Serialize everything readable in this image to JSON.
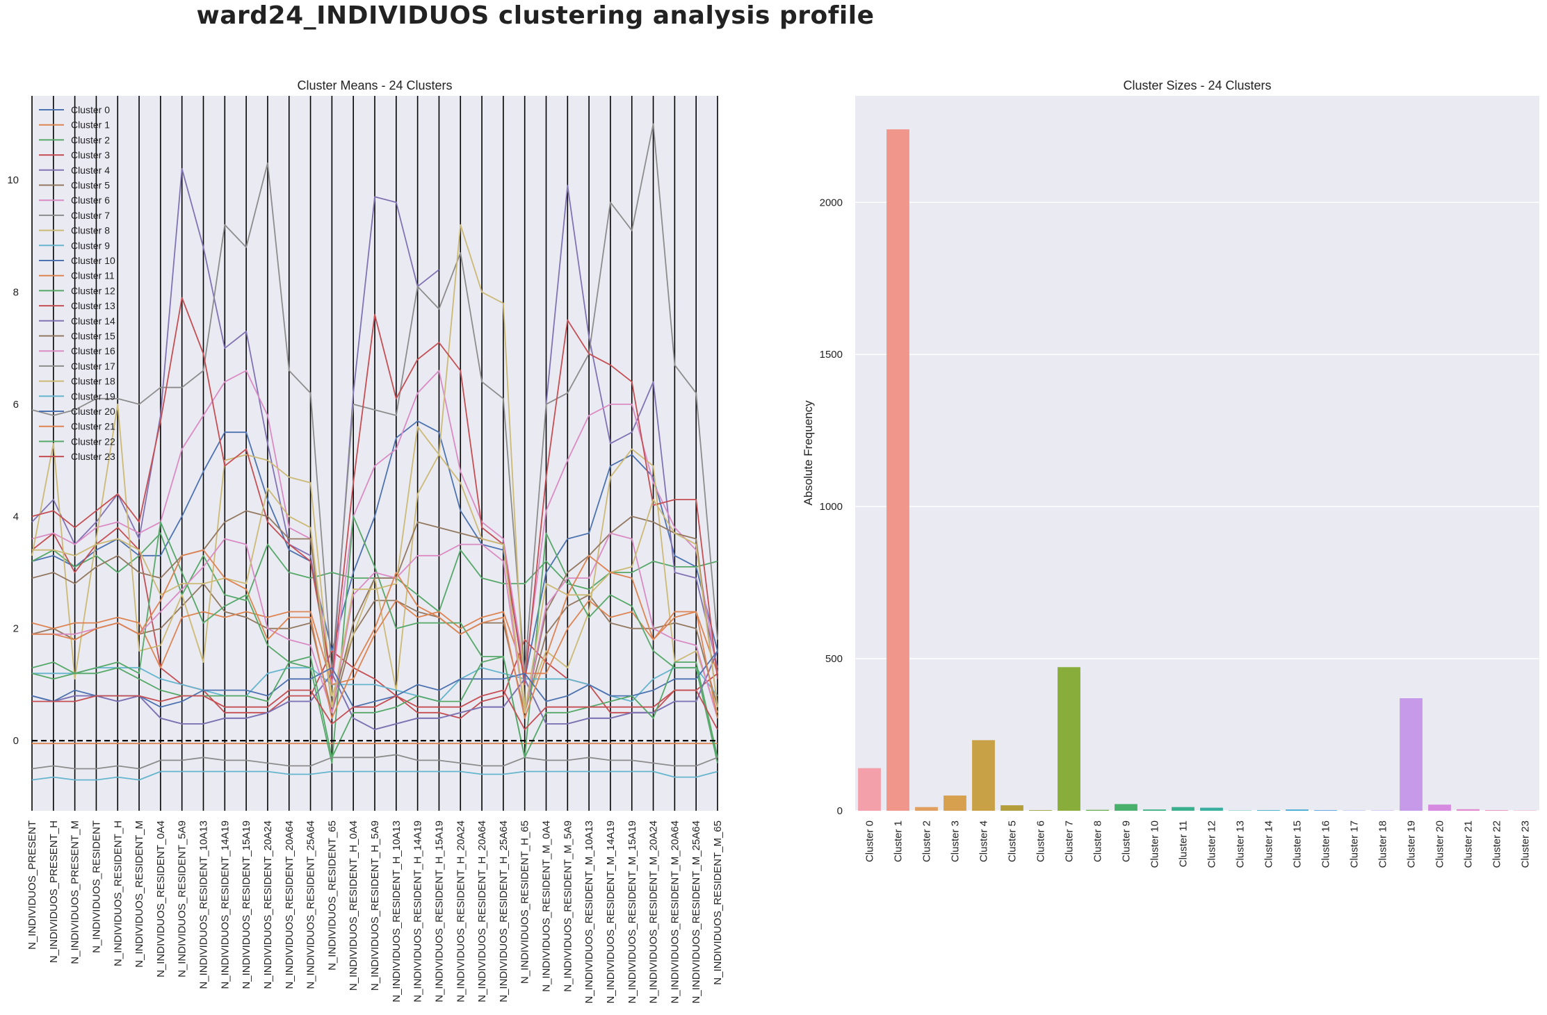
{
  "title": "ward24_INDIVIDUOS clustering analysis profile",
  "chart_data": [
    {
      "type": "line",
      "title": "Cluster Means - 24 Clusters",
      "ylim": [
        -1.25,
        11.5
      ],
      "yticks": [
        0,
        2,
        4,
        6,
        8,
        10
      ],
      "grid": false,
      "legend": "top-left",
      "reference_line": 0,
      "categories": [
        "N_INDIVIDUOS_PRESENT",
        "N_INDIVIDUOS_PRESENT_H",
        "N_INDIVIDUOS_PRESENT_M",
        "N_INDIVIDUOS_RESIDENT",
        "N_INDIVIDUOS_RESIDENT_H",
        "N_INDIVIDUOS_RESIDENT_M",
        "N_INDIVIDUOS_RESIDENT_0A4",
        "N_INDIVIDUOS_RESIDENT_5A9",
        "N_INDIVIDUOS_RESIDENT_10A13",
        "N_INDIVIDUOS_RESIDENT_14A19",
        "N_INDIVIDUOS_RESIDENT_15A19",
        "N_INDIVIDUOS_RESIDENT_20A24",
        "N_INDIVIDUOS_RESIDENT_20A64",
        "N_INDIVIDUOS_RESIDENT_25A64",
        "N_INDIVIDUOS_RESIDENT_65",
        "N_INDIVIDUOS_RESIDENT_H_0A4",
        "N_INDIVIDUOS_RESIDENT_H_5A9",
        "N_INDIVIDUOS_RESIDENT_H_10A13",
        "N_INDIVIDUOS_RESIDENT_H_14A19",
        "N_INDIVIDUOS_RESIDENT_H_15A19",
        "N_INDIVIDUOS_RESIDENT_H_20A24",
        "N_INDIVIDUOS_RESIDENT_H_20A64",
        "N_INDIVIDUOS_RESIDENT_H_25A64",
        "N_INDIVIDUOS_RESIDENT_H_65",
        "N_INDIVIDUOS_RESIDENT_M_0A4",
        "N_INDIVIDUOS_RESIDENT_M_5A9",
        "N_INDIVIDUOS_RESIDENT_M_10A13",
        "N_INDIVIDUOS_RESIDENT_M_14A19",
        "N_INDIVIDUOS_RESIDENT_M_15A19",
        "N_INDIVIDUOS_RESIDENT_M_20A24",
        "N_INDIVIDUOS_RESIDENT_M_20A64",
        "N_INDIVIDUOS_RESIDENT_M_25A64",
        "N_INDIVIDUOS_RESIDENT_M_65"
      ],
      "series": [
        {
          "name": "Cluster 0",
          "color": "#4c72b0",
          "values": [
            3.2,
            3.3,
            3.1,
            3.4,
            3.6,
            3.3,
            3.3,
            4.0,
            4.8,
            5.5,
            5.5,
            4.3,
            3.4,
            3.2,
            1.6,
            3.0,
            4.0,
            5.4,
            5.7,
            5.5,
            4.1,
            3.5,
            3.4,
            1.1,
            3.0,
            3.6,
            3.7,
            4.9,
            5.1,
            4.7,
            3.3,
            3.1,
            1.6
          ]
        },
        {
          "name": "Cluster 1",
          "color": "#dd8452",
          "values": [
            -0.05,
            -0.05,
            -0.05,
            -0.05,
            -0.05,
            -0.05,
            -0.05,
            -0.05,
            -0.05,
            -0.05,
            -0.05,
            -0.05,
            -0.05,
            -0.05,
            -0.05,
            -0.05,
            -0.05,
            -0.05,
            -0.05,
            -0.05,
            -0.05,
            -0.05,
            -0.05,
            -0.05,
            -0.05,
            -0.05,
            -0.05,
            -0.05,
            -0.05,
            -0.05,
            -0.05,
            -0.05,
            -0.05
          ]
        },
        {
          "name": "Cluster 2",
          "color": "#55a868",
          "values": [
            3.2,
            3.4,
            3.1,
            3.3,
            3.0,
            3.3,
            3.7,
            2.6,
            3.3,
            2.6,
            2.5,
            3.5,
            3.0,
            2.9,
            3.0,
            2.9,
            2.9,
            2.9,
            2.6,
            2.3,
            3.4,
            2.9,
            2.8,
            2.8,
            3.2,
            2.8,
            2.7,
            3.0,
            3.0,
            3.2,
            3.1,
            3.1,
            3.2
          ]
        },
        {
          "name": "Cluster 3",
          "color": "#c44e52",
          "values": [
            3.4,
            3.7,
            3.0,
            3.5,
            3.8,
            3.4,
            1.3,
            1.0,
            0.9,
            0.5,
            0.5,
            0.5,
            0.8,
            0.8,
            1.6,
            1.3,
            1.1,
            0.8,
            0.5,
            0.5,
            0.4,
            0.7,
            0.8,
            1.8,
            1.4,
            1.1,
            1.0,
            0.5,
            0.5,
            0.5,
            0.9,
            0.9,
            1.2
          ]
        },
        {
          "name": "Cluster 4",
          "color": "#8172b3",
          "values": [
            3.9,
            4.3,
            3.5,
            3.9,
            4.4,
            3.6,
            5.8,
            10.2,
            8.8,
            7.0,
            7.3,
            5.3,
            3.5,
            3.3,
            1.0,
            6.2,
            9.7,
            9.6,
            8.1,
            8.4,
            null,
            null,
            null,
            null,
            6.0,
            9.9,
            7.2,
            5.3,
            5.5,
            6.4,
            3.0,
            2.9,
            1.3
          ]
        },
        {
          "name": "Cluster 5",
          "color": "#937860",
          "values": [
            1.9,
            2.0,
            1.8,
            2.0,
            2.1,
            1.9,
            2.0,
            2.4,
            2.8,
            2.3,
            2.2,
            2.0,
            2.0,
            2.1,
            0.5,
            1.9,
            2.5,
            2.5,
            2.3,
            2.2,
            1.9,
            2.1,
            2.1,
            0.5,
            1.9,
            2.4,
            2.6,
            2.1,
            2.0,
            2.0,
            2.1,
            2.0,
            0.6
          ]
        },
        {
          "name": "Cluster 6",
          "color": "#da8bc3",
          "values": [
            3.6,
            3.7,
            3.5,
            3.8,
            3.9,
            3.7,
            3.9,
            5.2,
            5.8,
            6.4,
            6.6,
            5.8,
            3.8,
            3.6,
            1.0,
            4.0,
            4.9,
            5.2,
            6.2,
            6.6,
            4.8,
            3.9,
            3.6,
            1.2,
            4.1,
            5.0,
            5.8,
            6.0,
            6.0,
            4.6,
            3.8,
            3.4,
            1.2
          ]
        },
        {
          "name": "Cluster 7",
          "color": "#8c8c8c",
          "values": [
            5.9,
            5.8,
            5.9,
            6.1,
            6.1,
            6.0,
            6.3,
            6.3,
            6.6,
            9.2,
            8.8,
            10.3,
            6.6,
            6.2,
            1.2,
            6.0,
            5.9,
            5.8,
            8.1,
            7.7,
            8.7,
            6.4,
            6.1,
            1.2,
            6.0,
            6.2,
            6.9,
            9.6,
            9.1,
            11.0,
            6.7,
            6.2,
            1.8
          ]
        },
        {
          "name": "Cluster 8",
          "color": "#ccb974",
          "values": [
            3.3,
            5.3,
            1.1,
            3.6,
            6.0,
            1.6,
            1.7,
            2.6,
            1.4,
            5.0,
            5.1,
            5.0,
            4.7,
            4.6,
            0.8,
            1.9,
            2.9,
            0.9,
            4.4,
            5.1,
            9.2,
            8.0,
            7.8,
            0.6,
            1.6,
            1.3,
            2.3,
            4.7,
            5.2,
            4.9,
            1.4,
            1.6,
            0.5
          ]
        },
        {
          "name": "Cluster 9",
          "color": "#64b5cd",
          "values": [
            1.2,
            1.2,
            1.2,
            1.3,
            1.3,
            1.3,
            1.1,
            1.0,
            0.9,
            0.8,
            0.8,
            1.2,
            1.3,
            1.3,
            1.0,
            1.0,
            1.0,
            0.9,
            0.8,
            0.7,
            1.1,
            1.3,
            1.2,
            1.1,
            1.1,
            1.1,
            1.0,
            0.8,
            0.7,
            1.1,
            1.3,
            1.3,
            0.8
          ]
        },
        {
          "name": "Cluster 10",
          "color": "#4c72b0",
          "values": [
            0.8,
            0.7,
            0.8,
            0.8,
            0.7,
            0.8,
            0.4,
            0.3,
            0.3,
            0.4,
            0.4,
            0.5,
            0.7,
            0.7,
            1.2,
            0.4,
            0.2,
            0.3,
            0.4,
            0.4,
            0.5,
            0.6,
            0.6,
            1.1,
            0.3,
            0.3,
            0.4,
            0.4,
            0.5,
            0.5,
            0.7,
            0.7,
            1.6
          ]
        },
        {
          "name": "Cluster 11",
          "color": "#dd8452",
          "values": [
            2.1,
            2.0,
            2.1,
            2.1,
            2.2,
            2.1,
            1.3,
            2.2,
            2.3,
            2.2,
            2.3,
            2.2,
            2.3,
            2.3,
            1.0,
            1.1,
            1.9,
            2.5,
            2.2,
            2.3,
            2.0,
            2.2,
            2.3,
            1.2,
            1.2,
            2.0,
            2.5,
            2.2,
            2.3,
            1.8,
            2.2,
            2.3,
            1.2
          ]
        },
        {
          "name": "Cluster 12",
          "color": "#55a868",
          "values": [
            1.3,
            1.4,
            1.2,
            1.3,
            1.4,
            1.2,
            3.9,
            3.0,
            2.1,
            2.4,
            2.6,
            1.7,
            1.4,
            1.3,
            -0.4,
            4.0,
            3.1,
            2.0,
            2.1,
            2.1,
            2.1,
            1.5,
            1.5,
            -0.3,
            3.7,
            2.9,
            2.2,
            2.6,
            2.4,
            1.6,
            1.3,
            1.3,
            -0.4
          ]
        },
        {
          "name": "Cluster 13",
          "color": "#c44e52",
          "values": [
            4.0,
            4.1,
            3.8,
            4.1,
            4.4,
            3.9,
            5.7,
            7.9,
            6.9,
            4.9,
            5.2,
            3.9,
            3.5,
            3.2,
            1.1,
            4.6,
            7.6,
            6.1,
            6.8,
            7.1,
            6.6,
            3.8,
            3.5,
            1.0,
            4.7,
            7.5,
            6.9,
            6.7,
            6.4,
            4.2,
            4.3,
            4.3,
            1.1
          ]
        },
        {
          "name": "Cluster 14",
          "color": "#8172b3",
          "values": [
            0.8,
            0.7,
            0.8,
            0.8,
            0.7,
            0.8,
            0.4,
            0.3,
            0.3,
            0.4,
            0.4,
            0.5,
            0.7,
            0.7,
            1.2,
            0.4,
            0.2,
            0.3,
            0.4,
            0.4,
            0.5,
            0.6,
            0.6,
            1.1,
            0.3,
            0.3,
            0.4,
            0.4,
            0.5,
            0.5,
            0.7,
            0.7,
            1.6
          ]
        },
        {
          "name": "Cluster 15",
          "color": "#937860",
          "values": [
            2.9,
            3.0,
            2.8,
            3.1,
            3.3,
            3.0,
            2.9,
            3.3,
            3.4,
            3.9,
            4.1,
            4.0,
            3.6,
            3.6,
            0.6,
            2.1,
            2.9,
            2.9,
            3.9,
            3.8,
            3.7,
            3.6,
            3.5,
            0.5,
            2.3,
            3.0,
            3.3,
            3.7,
            4.0,
            3.9,
            3.7,
            3.6,
            0.6
          ]
        },
        {
          "name": "Cluster 16",
          "color": "#da8bc3",
          "values": [
            1.9,
            1.9,
            1.9,
            2.0,
            2.1,
            1.9,
            2.3,
            2.7,
            3.1,
            3.6,
            3.5,
            2.0,
            1.8,
            1.7,
            0.5,
            2.6,
            3.0,
            2.9,
            3.3,
            3.3,
            3.5,
            3.5,
            3.2,
            0.5,
            2.4,
            2.9,
            2.9,
            3.7,
            3.6,
            2.0,
            1.8,
            1.7,
            0.4
          ]
        },
        {
          "name": "Cluster 17",
          "color": "#8c8c8c",
          "values": [
            -0.5,
            -0.45,
            -0.5,
            -0.5,
            -0.45,
            -0.5,
            -0.35,
            -0.35,
            -0.3,
            -0.35,
            -0.35,
            -0.4,
            -0.45,
            -0.45,
            -0.3,
            -0.3,
            -0.3,
            -0.25,
            -0.35,
            -0.35,
            -0.4,
            -0.45,
            -0.45,
            -0.3,
            -0.35,
            -0.35,
            -0.3,
            -0.35,
            -0.35,
            -0.4,
            -0.45,
            -0.45,
            -0.3
          ]
        },
        {
          "name": "Cluster 18",
          "color": "#ccb974",
          "values": [
            3.4,
            3.4,
            3.3,
            3.5,
            3.6,
            3.4,
            2.6,
            2.8,
            2.8,
            2.9,
            2.8,
            4.5,
            4.0,
            3.8,
            0.6,
            2.7,
            2.7,
            2.8,
            5.6,
            5.1,
            4.6,
            3.6,
            3.5,
            0.5,
            2.8,
            2.6,
            2.6,
            3.0,
            3.1,
            4.3,
            3.7,
            3.5,
            0.6
          ]
        },
        {
          "name": "Cluster 19",
          "color": "#64b5cd",
          "values": [
            -0.7,
            -0.65,
            -0.7,
            -0.7,
            -0.65,
            -0.7,
            -0.55,
            -0.55,
            -0.55,
            -0.55,
            -0.55,
            -0.55,
            -0.6,
            -0.6,
            -0.55,
            -0.55,
            -0.55,
            -0.55,
            -0.55,
            -0.55,
            -0.55,
            -0.6,
            -0.6,
            -0.55,
            -0.55,
            -0.55,
            -0.55,
            -0.55,
            -0.55,
            -0.55,
            -0.65,
            -0.65,
            -0.55
          ]
        },
        {
          "name": "Cluster 20",
          "color": "#4c72b0",
          "values": [
            0.8,
            0.7,
            0.9,
            0.8,
            0.8,
            0.8,
            0.6,
            0.7,
            0.9,
            0.9,
            0.9,
            0.8,
            1.1,
            1.1,
            1.3,
            0.6,
            0.7,
            0.8,
            1.0,
            0.9,
            1.1,
            1.1,
            1.1,
            1.2,
            0.7,
            0.8,
            1.0,
            0.8,
            0.8,
            0.9,
            1.1,
            1.1,
            1.6
          ]
        },
        {
          "name": "Cluster 21",
          "color": "#dd8452",
          "values": [
            1.9,
            1.9,
            1.8,
            2.0,
            2.1,
            1.9,
            2.5,
            3.3,
            3.4,
            2.9,
            2.7,
            1.8,
            2.2,
            2.2,
            0.4,
            1.3,
            2.0,
            3.0,
            2.4,
            2.2,
            1.9,
            2.1,
            2.2,
            0.4,
            1.5,
            2.6,
            3.3,
            3.0,
            2.9,
            1.8,
            2.3,
            2.3,
            0.4
          ]
        },
        {
          "name": "Cluster 22",
          "color": "#55a868",
          "values": [
            1.2,
            1.1,
            1.2,
            1.2,
            1.3,
            1.1,
            0.9,
            0.8,
            0.8,
            0.8,
            0.8,
            0.7,
            1.4,
            1.5,
            -0.3,
            0.5,
            0.5,
            0.6,
            0.8,
            0.7,
            0.7,
            1.4,
            1.5,
            -0.3,
            0.5,
            0.5,
            0.6,
            0.7,
            0.8,
            0.4,
            1.4,
            1.4,
            -0.3
          ]
        },
        {
          "name": "Cluster 23",
          "color": "#c44e52",
          "values": [
            0.7,
            0.7,
            0.7,
            0.8,
            0.8,
            0.8,
            0.7,
            0.8,
            0.8,
            0.6,
            0.6,
            0.6,
            0.9,
            0.9,
            0.3,
            0.6,
            0.6,
            0.8,
            0.6,
            0.6,
            0.6,
            0.8,
            0.9,
            0.2,
            0.6,
            0.6,
            0.6,
            0.6,
            0.6,
            0.6,
            0.9,
            0.9,
            0.2
          ]
        }
      ]
    },
    {
      "type": "bar",
      "title": "Cluster Sizes - 24 Clusters",
      "ylabel": "Absolute Frequency",
      "ylim": [
        0,
        2350
      ],
      "yticks": [
        0,
        500,
        1000,
        1500,
        2000
      ],
      "grid": true,
      "categories": [
        "Cluster 0",
        "Cluster 1",
        "Cluster 2",
        "Cluster 3",
        "Cluster 4",
        "Cluster 5",
        "Cluster 6",
        "Cluster 7",
        "Cluster 8",
        "Cluster 9",
        "Cluster 10",
        "Cluster 11",
        "Cluster 12",
        "Cluster 13",
        "Cluster 14",
        "Cluster 15",
        "Cluster 16",
        "Cluster 17",
        "Cluster 18",
        "Cluster 19",
        "Cluster 20",
        "Cluster 21",
        "Cluster 22",
        "Cluster 23"
      ],
      "values": [
        140,
        2240,
        12,
        50,
        232,
        18,
        2,
        472,
        3,
        22,
        4,
        12,
        10,
        1,
        2,
        4,
        2,
        1,
        1,
        370,
        20,
        5,
        2,
        1
      ],
      "colors": [
        "#f3a0ab",
        "#f1968a",
        "#e1a060",
        "#d7a04e",
        "#c8a045",
        "#b49e3c",
        "#a0a03a",
        "#89ad3b",
        "#6aae4f",
        "#48b06a",
        "#3cb07e",
        "#3ab08f",
        "#3aafa0",
        "#3caeb0",
        "#3eaec3",
        "#40aad4",
        "#5aa0e2",
        "#8c97ec",
        "#ad8ef0",
        "#c69ae8",
        "#d68ae0",
        "#e08ad0",
        "#ec8ac0",
        "#f08ab0"
      ]
    }
  ]
}
